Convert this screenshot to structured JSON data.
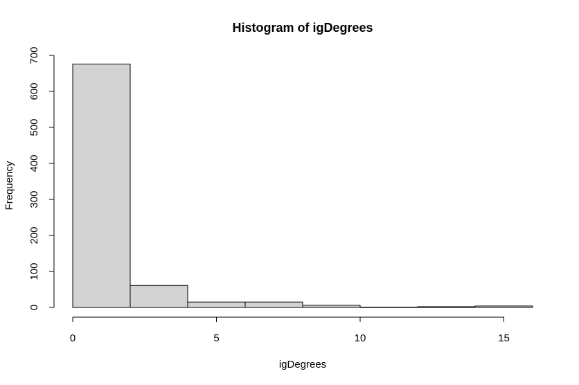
{
  "chart_data": {
    "type": "bar",
    "title": "Histogram of igDegrees",
    "xlabel": "igDegrees",
    "ylabel": "Frequency",
    "bins": [
      {
        "start": 0,
        "end": 2,
        "value": 676
      },
      {
        "start": 2,
        "end": 4,
        "value": 61
      },
      {
        "start": 4,
        "end": 6,
        "value": 15
      },
      {
        "start": 6,
        "end": 8,
        "value": 15
      },
      {
        "start": 8,
        "end": 10,
        "value": 6
      },
      {
        "start": 10,
        "end": 12,
        "value": 1
      },
      {
        "start": 12,
        "end": 14,
        "value": 2
      },
      {
        "start": 14,
        "end": 16,
        "value": 4
      }
    ],
    "xlim": [
      0,
      16
    ],
    "ylim": [
      0,
      700
    ],
    "x_ticks": [
      0,
      5,
      10,
      15
    ],
    "y_ticks": [
      0,
      100,
      200,
      300,
      400,
      500,
      600,
      700
    ],
    "grid": false,
    "colors": {
      "bar_fill": "#d3d3d3",
      "bar_stroke": "#000000",
      "axis": "#000000",
      "background": "#ffffff"
    }
  }
}
